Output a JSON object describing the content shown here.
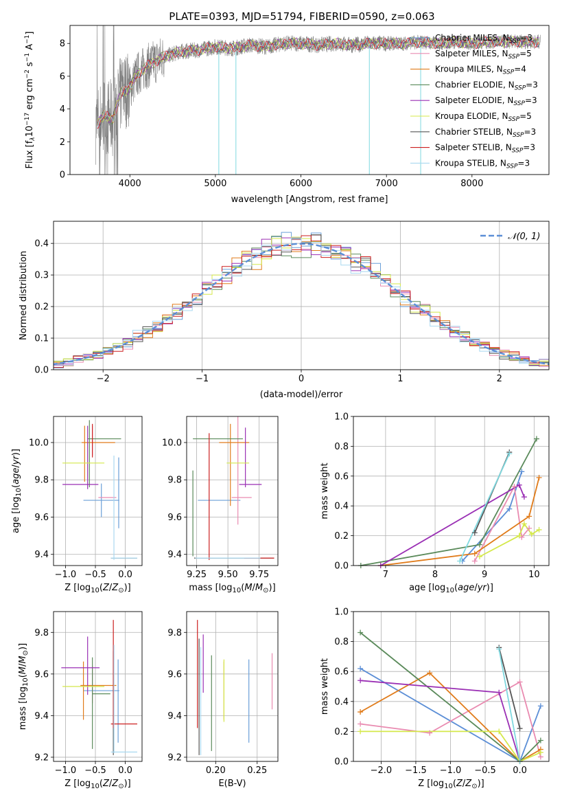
{
  "figure": {
    "title": "PLATE=0393, MJD=51794, FIBERID=0590, z=0.063"
  },
  "colors": {
    "observed_spectrum": "#808080",
    "grid": "#b0b0b0",
    "normal_curve": "#5b8ed6"
  },
  "chart_data": [
    {
      "id": "spectrum",
      "type": "line",
      "xlabel": "wavelength [Angstrom, rest frame]",
      "ylabel": "Flux [f_λ 10^-17 erg cm^-2 s^-1 A^-1]",
      "xlim": [
        3300,
        8900
      ],
      "ylim": [
        0,
        9.1
      ],
      "xticks": [
        4000,
        5000,
        6000,
        7000,
        8000
      ],
      "yticks": [
        0,
        2,
        4,
        6,
        8
      ],
      "grid": false,
      "legend_position": "right",
      "observed_color": "#808080",
      "continuum_knots": {
        "wavelength": [
          3600,
          3700,
          3800,
          3900,
          4000,
          4100,
          4200,
          4300,
          4400,
          4600,
          4800,
          5000,
          5200,
          5400,
          5600,
          5800,
          6000,
          6200,
          6400,
          6600,
          6800,
          7000,
          7200,
          7400,
          7600,
          7800,
          8000,
          8200,
          8400,
          8600,
          8800
        ],
        "flux": [
          3.0,
          3.6,
          3.4,
          5.0,
          5.3,
          6.2,
          6.6,
          6.9,
          7.2,
          7.5,
          7.6,
          7.8,
          7.7,
          7.9,
          7.8,
          8.0,
          8.0,
          7.9,
          8.0,
          7.9,
          8.0,
          8.0,
          8.0,
          8.1,
          8.0,
          8.1,
          8.0,
          8.1,
          8.1,
          8.1,
          8.1
        ]
      },
      "series": [
        {
          "name": "Chabrier MILES, N_SSP=3",
          "color": "#6a9fd8"
        },
        {
          "name": "Salpeter MILES, N_SSP=5",
          "color": "#e98ab0"
        },
        {
          "name": "Kroupa MILES, N_SSP=4",
          "color": "#e07b1a"
        },
        {
          "name": "Chabrier ELODIE, N_SSP=3",
          "color": "#5a8a5a"
        },
        {
          "name": "Salpeter ELODIE, N_SSP=3",
          "color": "#9a2fb4"
        },
        {
          "name": "Kroupa ELODIE, N_SSP=5",
          "color": "#d4e84a"
        },
        {
          "name": "Chabrier STELIB, N_SSP=3",
          "color": "#555555"
        },
        {
          "name": "Salpeter STELIB, N_SSP=3",
          "color": "#cc1f1f"
        },
        {
          "name": "Kroupa STELIB, N_SSP=3",
          "color": "#a8d8f0"
        }
      ]
    },
    {
      "id": "residuals",
      "type": "histogram",
      "xlabel": "(data-model)/error",
      "ylabel": "Normed distribution",
      "xlim": [
        -2.5,
        2.5
      ],
      "ylim": [
        0,
        0.47
      ],
      "xticks": [
        -2,
        -1,
        0,
        1,
        2
      ],
      "yticks": [
        0.0,
        0.1,
        0.2,
        0.3,
        0.4
      ],
      "grid": true,
      "legend": [
        "𝒩(0, 1)"
      ],
      "legend_position": "top-right",
      "bin_width": 0.1,
      "colors": [
        "#6a9fd8",
        "#e98ab0",
        "#e07b1a",
        "#5a8a5a",
        "#9a2fb4",
        "#d4e84a",
        "#555555",
        "#cc1f1f",
        "#a8d8f0"
      ]
    },
    {
      "id": "age_vs_Z",
      "type": "errorbar",
      "xlabel": "Z [log10(Z/Z⊙)]",
      "ylabel": "age [log10(age/yr)]",
      "xlim": [
        -1.2,
        0.28
      ],
      "ylim": [
        9.34,
        10.14
      ],
      "xticks": [
        -1.0,
        -0.5,
        0.0
      ],
      "yticks": [
        9.4,
        9.6,
        9.8,
        10.0
      ],
      "grid": true,
      "points": [
        {
          "series": "Chabrier MILES",
          "x": -0.4,
          "y": 9.69,
          "xerr": 0.3,
          "yerr": 0.09,
          "color": "#6a9fd8"
        },
        {
          "series": "Chabrier MILES",
          "x": -0.11,
          "y": 9.73,
          "xerr": 0.0,
          "yerr": 0.19,
          "color": "#6a9fd8"
        },
        {
          "series": "Salpeter MILES",
          "x": -0.3,
          "y": 9.705,
          "xerr": 0.15,
          "yerr": 0.0,
          "color": "#e98ab0"
        },
        {
          "series": "Salpeter MILES",
          "x": -0.55,
          "y": 10.01,
          "xerr": 0.0,
          "yerr": 0.08,
          "color": "#e98ab0"
        },
        {
          "series": "Kroupa MILES",
          "x": -0.45,
          "y": 10.0,
          "xerr": 0.28,
          "yerr": 0.0,
          "color": "#e07b1a"
        },
        {
          "series": "Kroupa MILES",
          "x": -0.68,
          "y": 9.94,
          "xerr": 0.0,
          "yerr": 0.15,
          "color": "#e07b1a"
        },
        {
          "series": "Chabrier ELODIE",
          "x": -0.35,
          "y": 10.02,
          "xerr": 0.28,
          "yerr": 0.0,
          "color": "#5a8a5a"
        },
        {
          "series": "Chabrier ELODIE",
          "x": -0.6,
          "y": 9.94,
          "xerr": 0.0,
          "yerr": 0.18,
          "color": "#5a8a5a"
        },
        {
          "series": "Salpeter ELODIE",
          "x": -0.75,
          "y": 9.775,
          "xerr": 0.3,
          "yerr": 0.0,
          "color": "#9a2fb4"
        },
        {
          "series": "Salpeter ELODIE",
          "x": -0.63,
          "y": 9.92,
          "xerr": 0.0,
          "yerr": 0.17,
          "color": "#9a2fb4"
        },
        {
          "series": "Kroupa ELODIE",
          "x": -0.7,
          "y": 9.89,
          "xerr": 0.35,
          "yerr": 0.0,
          "color": "#d4e84a"
        },
        {
          "series": "Chabrier STELIB",
          "x": -0.02,
          "y": 9.38,
          "xerr": 0.22,
          "yerr": 0.0,
          "color": "#555555"
        },
        {
          "series": "Salpeter STELIB",
          "x": -0.55,
          "y": 10.01,
          "xerr": 0.0,
          "yerr": 0.09,
          "color": "#cc1f1f"
        },
        {
          "series": "Kroupa STELIB",
          "x": -0.02,
          "y": 9.38,
          "xerr": 0.22,
          "yerr": 0.0,
          "color": "#a8d8f0"
        },
        {
          "series": "Kroupa STELIB",
          "x": -0.19,
          "y": 9.65,
          "xerr": 0.0,
          "yerr": 0.28,
          "color": "#a8d8f0"
        }
      ]
    },
    {
      "id": "age_vs_mass",
      "type": "errorbar",
      "xlabel": "mass [log10(M/M⊙)]",
      "ylabel": "",
      "xlim": [
        9.17,
        9.9
      ],
      "ylim": [
        9.34,
        10.14
      ],
      "xticks": [
        9.25,
        9.5,
        9.75
      ],
      "yticks": [
        9.4,
        9.6,
        9.8,
        10.0
      ],
      "grid": true,
      "points": [
        {
          "series": "Chabrier MILES",
          "x": 9.43,
          "y": 9.69,
          "xerr": 0.17,
          "yerr": 0.0,
          "color": "#6a9fd8"
        },
        {
          "series": "Salpeter MILES",
          "x": 9.61,
          "y": 9.705,
          "xerr": 0.08,
          "yerr": 0.0,
          "color": "#e98ab0"
        },
        {
          "series": "Salpeter MILES",
          "x": 9.58,
          "y": 9.86,
          "xerr": 0.0,
          "yerr": 0.3,
          "color": "#e98ab0"
        },
        {
          "series": "Kroupa MILES",
          "x": 9.55,
          "y": 10.0,
          "xerr": 0.12,
          "yerr": 0.0,
          "color": "#e07b1a"
        },
        {
          "series": "Kroupa MILES",
          "x": 9.52,
          "y": 9.88,
          "xerr": 0.0,
          "yerr": 0.22,
          "color": "#e07b1a"
        },
        {
          "series": "Chabrier ELODIE",
          "x": 9.42,
          "y": 10.02,
          "xerr": 0.2,
          "yerr": 0.0,
          "color": "#5a8a5a"
        },
        {
          "series": "Chabrier ELODIE",
          "x": 9.22,
          "y": 9.62,
          "xerr": 0.0,
          "yerr": 0.23,
          "color": "#5a8a5a"
        },
        {
          "series": "Salpeter ELODIE",
          "x": 9.68,
          "y": 9.775,
          "xerr": 0.09,
          "yerr": 0.0,
          "color": "#9a2fb4"
        },
        {
          "series": "Salpeter ELODIE",
          "x": 9.64,
          "y": 9.92,
          "xerr": 0.0,
          "yerr": 0.16,
          "color": "#9a2fb4"
        },
        {
          "series": "Kroupa ELODIE",
          "x": 9.58,
          "y": 9.89,
          "xerr": 0.09,
          "yerr": 0.0,
          "color": "#d4e84a"
        },
        {
          "series": "Chabrier STELIB",
          "x": 9.55,
          "y": 9.38,
          "xerr": 0.32,
          "yerr": 0.0,
          "color": "#555555"
        },
        {
          "series": "Salpeter STELIB",
          "x": 9.35,
          "y": 9.71,
          "xerr": 0.0,
          "yerr": 0.34,
          "color": "#cc1f1f"
        },
        {
          "series": "Salpeter STELIB",
          "x": 9.75,
          "y": 9.38,
          "xerr": 0.12,
          "yerr": 0.0,
          "color": "#cc1f1f"
        },
        {
          "series": "Kroupa STELIB",
          "x": 9.5,
          "y": 9.38,
          "xerr": 0.26,
          "yerr": 0.0,
          "color": "#a8d8f0"
        }
      ]
    },
    {
      "id": "weight_vs_age",
      "type": "line",
      "xlabel": "age [log10(age/yr)]",
      "ylabel": "mass weight",
      "xlim": [
        6.35,
        10.3
      ],
      "ylim": [
        0,
        1
      ],
      "xticks": [
        7,
        8,
        9,
        10
      ],
      "yticks": [
        0.0,
        0.2,
        0.4,
        0.6,
        0.8,
        1.0
      ],
      "grid": true,
      "series": [
        {
          "name": "Chabrier MILES",
          "color": "#5b8ed6",
          "x": [
            8.55,
            9.5,
            9.75
          ],
          "y": [
            0.03,
            0.38,
            0.63
          ]
        },
        {
          "name": "Salpeter MILES",
          "color": "#e98ab0",
          "x": [
            8.8,
            9.6,
            9.75,
            9.9
          ],
          "y": [
            0.03,
            0.53,
            0.19,
            0.25
          ]
        },
        {
          "name": "Kroupa MILES",
          "color": "#e07b1a",
          "x": [
            6.9,
            8.8,
            9.9,
            10.1
          ],
          "y": [
            0.0,
            0.08,
            0.33,
            0.59
          ]
        },
        {
          "name": "Chabrier ELODIE",
          "color": "#5a8a5a",
          "x": [
            6.5,
            8.9,
            10.05
          ],
          "y": [
            0.0,
            0.14,
            0.85
          ]
        },
        {
          "name": "Salpeter ELODIE",
          "color": "#9a2fb4",
          "x": [
            6.9,
            9.7,
            9.8
          ],
          "y": [
            0.0,
            0.54,
            0.46
          ]
        },
        {
          "name": "Kroupa ELODIE",
          "color": "#d4e84a",
          "x": [
            8.9,
            9.7,
            9.8,
            9.95,
            10.1
          ],
          "y": [
            0.06,
            0.2,
            0.28,
            0.21,
            0.24
          ]
        },
        {
          "name": "Chabrier STELIB",
          "color": "#555555",
          "x": [
            8.8,
            9.5
          ],
          "y": [
            0.22,
            0.76
          ]
        },
        {
          "name": "Kroupa STELIB",
          "color": "#7fd8df",
          "x": [
            8.5,
            9.5
          ],
          "y": [
            0.03,
            0.75
          ]
        }
      ]
    },
    {
      "id": "mass_vs_Z",
      "type": "errorbar",
      "xlabel": "Z [log10(Z/Z⊙)]",
      "ylabel": "mass [log10(M/M⊙)]",
      "xlim": [
        -1.2,
        0.28
      ],
      "ylim": [
        9.18,
        9.9
      ],
      "xticks": [
        -1.0,
        -0.5,
        0.0
      ],
      "yticks": [
        9.2,
        9.4,
        9.6,
        9.8
      ],
      "grid": true,
      "points": [
        {
          "series": "Chabrier MILES",
          "x": -0.4,
          "y": 9.52,
          "xerr": 0.3,
          "yerr": 0.0,
          "color": "#6a9fd8"
        },
        {
          "series": "Chabrier MILES",
          "x": -0.12,
          "y": 9.47,
          "xerr": 0.0,
          "yerr": 0.2,
          "color": "#6a9fd8"
        },
        {
          "series": "Salpeter MILES",
          "x": -0.55,
          "y": 9.55,
          "xerr": 0.0,
          "yerr": 0.09,
          "color": "#e98ab0"
        },
        {
          "series": "Kroupa MILES",
          "x": -0.45,
          "y": 9.545,
          "xerr": 0.3,
          "yerr": 0.0,
          "color": "#e07b1a"
        },
        {
          "series": "Kroupa MILES",
          "x": -0.7,
          "y": 9.52,
          "xerr": 0.0,
          "yerr": 0.14,
          "color": "#e07b1a"
        },
        {
          "series": "Chabrier ELODIE",
          "x": -0.4,
          "y": 9.505,
          "xerr": 0.15,
          "yerr": 0.0,
          "color": "#5a8a5a"
        },
        {
          "series": "Chabrier ELODIE",
          "x": -0.55,
          "y": 9.46,
          "xerr": 0.0,
          "yerr": 0.22,
          "color": "#5a8a5a"
        },
        {
          "series": "Salpeter ELODIE",
          "x": -0.75,
          "y": 9.63,
          "xerr": 0.32,
          "yerr": 0.0,
          "color": "#9a2fb4"
        },
        {
          "series": "Salpeter ELODIE",
          "x": -0.63,
          "y": 9.64,
          "xerr": 0.0,
          "yerr": 0.14,
          "color": "#9a2fb4"
        },
        {
          "series": "Kroupa ELODIE",
          "x": -0.7,
          "y": 9.54,
          "xerr": 0.35,
          "yerr": 0.0,
          "color": "#d4e84a"
        },
        {
          "series": "Chabrier STELIB",
          "x": -0.2,
          "y": 9.46,
          "xerr": 0.0,
          "yerr": 0.25,
          "color": "#555555"
        },
        {
          "series": "Salpeter STELIB",
          "x": -0.02,
          "y": 9.36,
          "xerr": 0.22,
          "yerr": 0.0,
          "color": "#cc1f1f"
        },
        {
          "series": "Salpeter STELIB",
          "x": -0.2,
          "y": 9.6,
          "xerr": 0.0,
          "yerr": 0.26,
          "color": "#cc1f1f"
        },
        {
          "series": "Kroupa STELIB",
          "x": -0.02,
          "y": 9.225,
          "xerr": 0.22,
          "yerr": 0.0,
          "color": "#a8d8f0"
        },
        {
          "series": "Kroupa STELIB",
          "x": -0.19,
          "y": 9.48,
          "xerr": 0.0,
          "yerr": 0.26,
          "color": "#a8d8f0"
        }
      ]
    },
    {
      "id": "mass_vs_ebv",
      "type": "errorbar",
      "xlabel": "E(B-V)",
      "ylabel": "",
      "xlim": [
        0.165,
        0.275
      ],
      "ylim": [
        9.18,
        9.9
      ],
      "xticks": [
        0.2,
        0.25
      ],
      "yticks": [
        9.2,
        9.4,
        9.6,
        9.8
      ],
      "grid": true,
      "points": [
        {
          "series": "Chabrier MILES",
          "x": 0.24,
          "y": 9.47,
          "xerr": 0.0,
          "yerr": 0.2,
          "color": "#6a9fd8"
        },
        {
          "series": "Salpeter MILES",
          "x": 0.268,
          "y": 9.565,
          "xerr": 0.0,
          "yerr": 0.135,
          "color": "#e98ab0"
        },
        {
          "series": "Kroupa MILES",
          "x": 0.21,
          "y": 9.52,
          "xerr": 0.0,
          "yerr": 0.14,
          "color": "#e07b1a"
        },
        {
          "series": "Chabrier ELODIE",
          "x": 0.195,
          "y": 9.46,
          "xerr": 0.0,
          "yerr": 0.23,
          "color": "#5a8a5a"
        },
        {
          "series": "Salpeter ELODIE",
          "x": 0.185,
          "y": 9.65,
          "xerr": 0.0,
          "yerr": 0.14,
          "color": "#9a2fb4"
        },
        {
          "series": "Kroupa ELODIE",
          "x": 0.21,
          "y": 9.52,
          "xerr": 0.0,
          "yerr": 0.15,
          "color": "#d4e84a"
        },
        {
          "series": "Chabrier STELIB",
          "x": 0.18,
          "y": 9.49,
          "xerr": 0.0,
          "yerr": 0.28,
          "color": "#555555"
        },
        {
          "series": "Salpeter STELIB",
          "x": 0.178,
          "y": 9.6,
          "xerr": 0.0,
          "yerr": 0.26,
          "color": "#cc1f1f"
        },
        {
          "series": "Kroupa STELIB",
          "x": 0.182,
          "y": 9.47,
          "xerr": 0.0,
          "yerr": 0.26,
          "color": "#a8d8f0"
        }
      ]
    },
    {
      "id": "weight_vs_Z",
      "type": "line",
      "xlabel": "Z [log10(Z/Z⊙)]",
      "ylabel": "mass weight",
      "xlim": [
        -2.4,
        0.42
      ],
      "ylim": [
        0,
        1
      ],
      "xticks": [
        -2.0,
        -1.5,
        -1.0,
        -0.5,
        0.0
      ],
      "yticks": [
        0.0,
        0.2,
        0.4,
        0.6,
        0.8,
        1.0
      ],
      "grid": true,
      "series": [
        {
          "name": "Chabrier MILES",
          "color": "#5b8ed6",
          "x": [
            -2.3,
            0.0,
            0.3
          ],
          "y": [
            0.62,
            0.0,
            0.37
          ]
        },
        {
          "name": "Salpeter MILES",
          "color": "#e98ab0",
          "x": [
            -2.3,
            -1.3,
            0.0,
            0.3
          ],
          "y": [
            0.25,
            0.19,
            0.53,
            0.03
          ]
        },
        {
          "name": "Kroupa MILES",
          "color": "#e07b1a",
          "x": [
            -2.3,
            -1.3,
            0.0,
            0.3
          ],
          "y": [
            0.33,
            0.59,
            0.0,
            0.08
          ]
        },
        {
          "name": "Chabrier ELODIE",
          "color": "#5a8a5a",
          "x": [
            -2.3,
            0.0,
            0.3
          ],
          "y": [
            0.86,
            0.0,
            0.14
          ]
        },
        {
          "name": "Salpeter ELODIE",
          "color": "#9a2fb4",
          "x": [
            -2.3,
            -0.3,
            0.0
          ],
          "y": [
            0.54,
            0.46,
            0.0
          ]
        },
        {
          "name": "Kroupa ELODIE",
          "color": "#d4e84a",
          "x": [
            -2.3,
            -0.3,
            0.0,
            0.3
          ],
          "y": [
            0.2,
            0.2,
            0.0,
            0.06
          ]
        },
        {
          "name": "Chabrier STELIB",
          "color": "#555555",
          "x": [
            -0.3,
            0.0
          ],
          "y": [
            0.76,
            0.22
          ]
        },
        {
          "name": "Kroupa STELIB",
          "color": "#7fd8df",
          "x": [
            -0.3,
            0.0
          ],
          "y": [
            0.75,
            0.0
          ]
        }
      ]
    }
  ]
}
